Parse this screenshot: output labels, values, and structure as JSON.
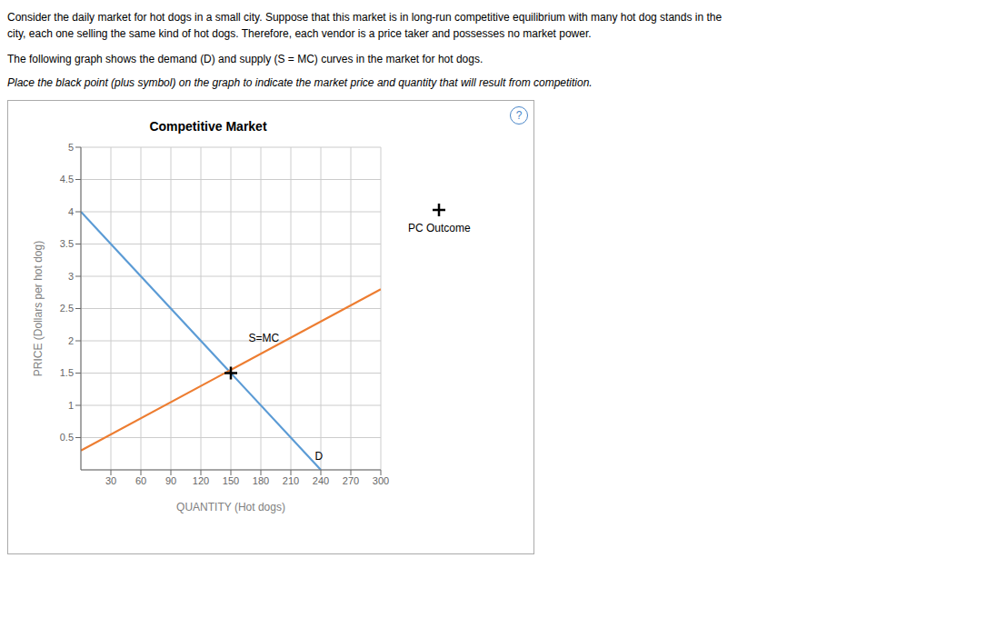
{
  "chart_data": {
    "type": "line",
    "title": "Competitive Market",
    "subtitle": [
      "Consider the daily market for hot dogs in a small city. Suppose that this market is in long-run competitive equilibrium with many hot dog stands in the",
      "city, each one selling the same kind of hot dogs. Therefore, each vendor is a price taker and possesses no market power.",
      "The following graph shows the demand (D) and supply (S = MC) curves in the market for hot dogs.",
      "Place the black point (plus symbol) on the graph to indicate the market price and quantity that will result from competition."
    ],
    "xlabel": "QUANTITY (Hot dogs)",
    "ylabel": "PRICE (Dollars per hot dog)",
    "xlim": [
      0,
      300
    ],
    "ylim": [
      0,
      5.0
    ],
    "xticks": [
      30,
      60,
      90,
      120,
      150,
      180,
      210,
      240,
      270,
      300
    ],
    "yticks": [
      0.5,
      1,
      1.5,
      2,
      2.5,
      3,
      3.5,
      4,
      4.5,
      5
    ],
    "grid": true,
    "series": [
      {
        "type": "line",
        "color": "#5b9bd5",
        "x": [
          0,
          240
        ],
        "values": [
          4.0,
          0.0
        ]
      },
      {
        "type": "line",
        "color": "#ed7d31",
        "x": [
          0,
          300
        ],
        "values": [
          0.3,
          2.8
        ]
      },
      {
        "type": "scatter",
        "marker": "plus",
        "color": "#000000",
        "x": [
          150
        ],
        "values": [
          1.5
        ]
      }
    ],
    "annotations": [
      {
        "text": "D",
        "x": 238,
        "y": 0.08
      },
      {
        "text": "S=MC",
        "x": 183,
        "y": 1.92
      },
      {
        "text": "PC Outcome",
        "marker": "plus"
      },
      {
        "text": "?"
      }
    ]
  }
}
